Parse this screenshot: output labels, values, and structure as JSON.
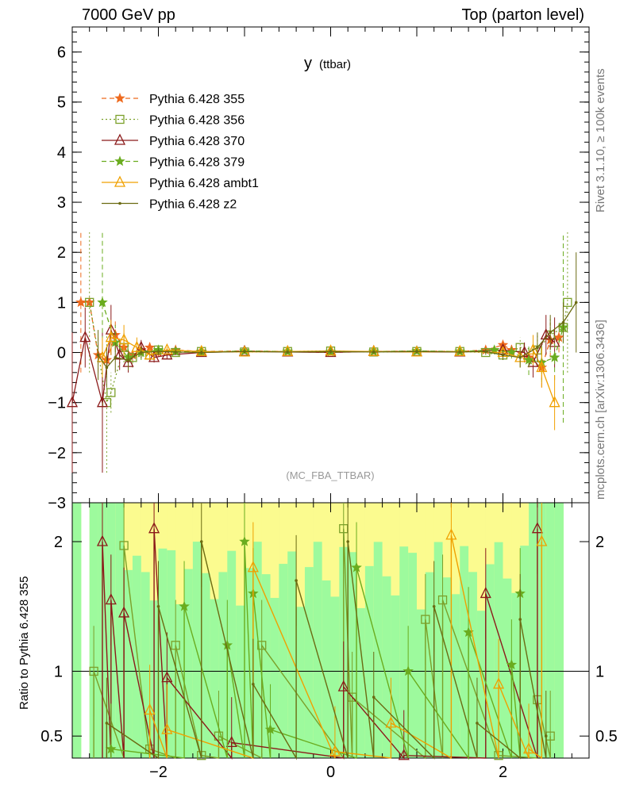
{
  "header": {
    "left_title": "7000 GeV pp",
    "right_title": "Top (parton level)"
  },
  "side_labels": {
    "rivet": "Rivet 3.1.10, ≥ 100k events",
    "source": "mcplots.cern.ch [arXiv:1306.3436]"
  },
  "ratio_ylabel": "Ratio to Pythia 6.428 355",
  "chart_data": [
    {
      "type": "line",
      "title": "y (ttbar)",
      "title_main": "y",
      "title_sub": "(ttbar)",
      "annotation": "(MC_FBA_TTBAR)",
      "xlabel": "",
      "ylabel": "",
      "xlim": [
        -3,
        3
      ],
      "ylim": [
        -3,
        6.5
      ],
      "yticks": [
        -3,
        -2,
        -1,
        0,
        1,
        2,
        3,
        4,
        5,
        6
      ],
      "ytick_labels": [
        "−3",
        "−2",
        "−1",
        "0",
        "1",
        "2",
        "3",
        "4",
        "5",
        "6"
      ],
      "xticks": [
        -2,
        0,
        2
      ],
      "xtick_labels": [
        "−2",
        "0",
        "2"
      ],
      "legend_position": "top-left",
      "series": [
        {
          "name": "Pythia 6.428 355",
          "color": "#ee6a1e",
          "marker": "star",
          "dash": "6,4",
          "points": [
            [
              -2.9,
              1.0
            ],
            [
              -2.8,
              1.0
            ],
            [
              -2.7,
              -0.05
            ],
            [
              -2.6,
              -0.15
            ],
            [
              -2.5,
              0.35
            ],
            [
              -2.4,
              0.1
            ],
            [
              -2.3,
              -0.05
            ],
            [
              -2.2,
              0.05
            ],
            [
              -2.1,
              0.1
            ],
            [
              -2.0,
              0.0
            ],
            [
              -1.8,
              0.05
            ],
            [
              -1.5,
              0.02
            ],
            [
              -1.0,
              0.03
            ],
            [
              -0.5,
              0.02
            ],
            [
              0.0,
              0.01
            ],
            [
              0.5,
              0.02
            ],
            [
              1.0,
              0.03
            ],
            [
              1.5,
              0.02
            ],
            [
              1.8,
              0.05
            ],
            [
              2.0,
              0.15
            ],
            [
              2.1,
              0.05
            ],
            [
              2.3,
              -0.1
            ],
            [
              2.45,
              -0.3
            ],
            [
              2.55,
              0.25
            ],
            [
              2.65,
              0.3
            ]
          ],
          "errors": [
            1.4,
            0,
            0.35,
            0.3,
            0.3,
            0.2,
            0.15,
            0.1,
            0.1,
            0.08,
            0.05,
            0.04,
            0.04,
            0.04,
            0.04,
            0.04,
            0.04,
            0.04,
            0.05,
            0.1,
            0.1,
            0.2,
            0.4,
            0.35,
            0.3
          ]
        },
        {
          "name": "Pythia 6.428 356",
          "color": "#7ba02a",
          "marker": "square",
          "dash": "2,3",
          "points": [
            [
              -2.8,
              1.0
            ],
            [
              -2.6,
              -1.0
            ],
            [
              -2.55,
              -0.8
            ],
            [
              -2.4,
              0.1
            ],
            [
              -2.3,
              -0.1
            ],
            [
              -2.1,
              -0.05
            ],
            [
              -2.0,
              0.05
            ],
            [
              -1.8,
              0.0
            ],
            [
              -1.5,
              0.02
            ],
            [
              -1.0,
              0.01
            ],
            [
              -0.5,
              0.02
            ],
            [
              0.0,
              0.03
            ],
            [
              0.5,
              0.01
            ],
            [
              1.0,
              0.02
            ],
            [
              1.5,
              0.02
            ],
            [
              1.8,
              0.0
            ],
            [
              2.0,
              -0.05
            ],
            [
              2.2,
              0.1
            ],
            [
              2.4,
              0.05
            ],
            [
              2.55,
              0.35
            ],
            [
              2.7,
              0.5
            ],
            [
              2.75,
              1.0
            ]
          ],
          "errors": [
            1.4,
            1.4,
            0.4,
            0.3,
            0.2,
            0.1,
            0.08,
            0.05,
            0.04,
            0.04,
            0.04,
            0.04,
            0.04,
            0.04,
            0.04,
            0.05,
            0.08,
            0.2,
            0.3,
            0.35,
            0.4,
            1.4
          ]
        },
        {
          "name": "Pythia 6.428 370",
          "color": "#8b1a1a",
          "marker": "triangle",
          "dash": "",
          "points": [
            [
              -3.0,
              -1.0
            ],
            [
              -2.85,
              0.3
            ],
            [
              -2.65,
              -1.0
            ],
            [
              -2.55,
              0.45
            ],
            [
              -2.45,
              -0.05
            ],
            [
              -2.35,
              -0.2
            ],
            [
              -2.2,
              0.1
            ],
            [
              -2.05,
              -0.1
            ],
            [
              -1.9,
              -0.05
            ],
            [
              -1.5,
              0.0
            ],
            [
              -1.0,
              0.02
            ],
            [
              -0.5,
              0.01
            ],
            [
              0.0,
              0.0
            ],
            [
              0.5,
              0.02
            ],
            [
              1.0,
              0.01
            ],
            [
              1.5,
              0.01
            ],
            [
              2.0,
              0.05
            ],
            [
              2.25,
              0.0
            ],
            [
              2.35,
              -0.2
            ],
            [
              2.5,
              0.35
            ],
            [
              2.6,
              0.2
            ]
          ],
          "errors": [
            1.4,
            0.6,
            1.4,
            0.5,
            0.3,
            0.2,
            0.15,
            0.1,
            0.08,
            0.05,
            0.04,
            0.04,
            0.04,
            0.04,
            0.04,
            0.04,
            0.08,
            0.2,
            0.3,
            0.4,
            0.5
          ]
        },
        {
          "name": "Pythia 6.428 379",
          "color": "#6aac1f",
          "marker": "star",
          "dash": "6,4",
          "points": [
            [
              -2.65,
              1.0
            ],
            [
              -2.5,
              0.2
            ],
            [
              -2.35,
              -0.1
            ],
            [
              -2.2,
              0.0
            ],
            [
              -2.0,
              0.05
            ],
            [
              -1.8,
              0.02
            ],
            [
              -1.5,
              0.01
            ],
            [
              -1.0,
              0.03
            ],
            [
              -0.5,
              0.02
            ],
            [
              0.0,
              0.01
            ],
            [
              0.5,
              0.02
            ],
            [
              1.0,
              0.03
            ],
            [
              1.5,
              0.02
            ],
            [
              1.9,
              0.05
            ],
            [
              2.1,
              0.0
            ],
            [
              2.3,
              -0.15
            ],
            [
              2.45,
              -0.2
            ],
            [
              2.6,
              -0.1
            ],
            [
              2.7,
              0.5
            ]
          ],
          "errors": [
            1.4,
            0.35,
            0.25,
            0.15,
            0.08,
            0.05,
            0.04,
            0.04,
            0.04,
            0.04,
            0.04,
            0.04,
            0.04,
            0.06,
            0.12,
            0.3,
            0.4,
            0.45,
            1.9
          ]
        },
        {
          "name": "Pythia 6.428 ambt1",
          "color": "#f0a000",
          "marker": "triangle",
          "dash": "",
          "points": [
            [
              -2.65,
              -0.1
            ],
            [
              -2.55,
              0.3
            ],
            [
              -2.4,
              0.25
            ],
            [
              -2.25,
              0.1
            ],
            [
              -2.1,
              -0.05
            ],
            [
              -1.9,
              0.05
            ],
            [
              -1.5,
              0.02
            ],
            [
              -1.0,
              0.01
            ],
            [
              -0.5,
              0.02
            ],
            [
              0.0,
              0.03
            ],
            [
              0.5,
              0.02
            ],
            [
              1.0,
              0.01
            ],
            [
              1.5,
              0.02
            ],
            [
              2.0,
              0.0
            ],
            [
              2.2,
              -0.1
            ],
            [
              2.35,
              0.05
            ],
            [
              2.45,
              -0.3
            ],
            [
              2.6,
              -1.0
            ]
          ],
          "errors": [
            0.4,
            0.35,
            0.3,
            0.2,
            0.1,
            0.06,
            0.04,
            0.04,
            0.04,
            0.04,
            0.04,
            0.04,
            0.04,
            0.08,
            0.2,
            0.3,
            0.4,
            0.55
          ]
        },
        {
          "name": "Pythia 6.428 z2",
          "color": "#6b6b12",
          "marker": "dot",
          "dash": "",
          "points": [
            [
              -2.7,
              -0.05
            ],
            [
              -2.6,
              -0.3
            ],
            [
              -2.5,
              -0.1
            ],
            [
              -2.35,
              -0.15
            ],
            [
              -2.2,
              0.0
            ],
            [
              -2.0,
              0.02
            ],
            [
              -1.8,
              0.01
            ],
            [
              -1.5,
              0.0
            ],
            [
              -1.0,
              0.02
            ],
            [
              -0.5,
              0.01
            ],
            [
              0.0,
              0.02
            ],
            [
              0.5,
              0.01
            ],
            [
              1.0,
              0.02
            ],
            [
              1.5,
              0.01
            ],
            [
              1.8,
              0.02
            ],
            [
              2.0,
              -0.05
            ],
            [
              2.2,
              -0.1
            ],
            [
              2.4,
              0.1
            ],
            [
              2.55,
              0.4
            ],
            [
              2.7,
              0.6
            ],
            [
              2.85,
              1.0
            ]
          ],
          "errors": [
            0.5,
            0.4,
            0.3,
            0.2,
            0.12,
            0.07,
            0.05,
            0.04,
            0.04,
            0.04,
            0.04,
            0.04,
            0.04,
            0.04,
            0.05,
            0.1,
            0.2,
            0.3,
            0.35,
            0.4,
            1.0
          ]
        }
      ]
    },
    {
      "type": "line",
      "title": "",
      "ylabel": "Ratio to Pythia 6.428 355",
      "xlim": [
        -3,
        3
      ],
      "ylim": [
        0.33,
        2.3
      ],
      "yscale": "linear",
      "yticks": [
        0.5,
        1,
        2
      ],
      "ytick_labels": [
        "0.5",
        "1",
        "2"
      ],
      "xticks": [
        -2,
        0,
        2
      ],
      "xtick_labels": [
        "−2",
        "0",
        "2"
      ],
      "reference_line": 1,
      "band_colors": {
        "inner": "#9dfa9d",
        "outer": "#fbfb8f"
      },
      "series": [
        {
          "name": "Pythia 6.428 356",
          "color": "#7ba02a",
          "marker": "square",
          "points": [
            [
              -2.75,
              1.0
            ],
            [
              -2.4,
              1.97
            ],
            [
              -2.1,
              0.4
            ],
            [
              -1.8,
              1.2
            ],
            [
              -1.5,
              0.35
            ],
            [
              -1.3,
              0.5
            ],
            [
              -0.8,
              1.2
            ],
            [
              0.15,
              2.1
            ],
            [
              0.25,
              0.8
            ],
            [
              1.1,
              1.4
            ],
            [
              1.3,
              1.55
            ],
            [
              1.95,
              0.35
            ],
            [
              2.4,
              0.78
            ],
            [
              2.55,
              0.5
            ]
          ]
        },
        {
          "name": "Pythia 6.428 370",
          "color": "#8b1a1a",
          "marker": "triangle",
          "points": [
            [
              -2.65,
              2.0
            ],
            [
              -2.55,
              1.55
            ],
            [
              -2.4,
              1.45
            ],
            [
              -2.05,
              2.1
            ],
            [
              -1.9,
              0.95
            ],
            [
              -1.15,
              0.45
            ],
            [
              0.15,
              0.88
            ],
            [
              0.85,
              0.35
            ],
            [
              1.8,
              1.6
            ],
            [
              2.4,
              2.1
            ]
          ]
        },
        {
          "name": "Pythia 6.428 379",
          "color": "#6aac1f",
          "marker": "star",
          "points": [
            [
              -2.55,
              0.4
            ],
            [
              -1.7,
              1.5
            ],
            [
              -1.2,
              1.2
            ],
            [
              -1.0,
              2.0
            ],
            [
              -0.9,
              1.6
            ],
            [
              -0.7,
              0.55
            ],
            [
              0.3,
              1.8
            ],
            [
              0.9,
              1.0
            ],
            [
              1.6,
              1.3
            ],
            [
              2.1,
              1.05
            ],
            [
              2.2,
              1.6
            ]
          ]
        },
        {
          "name": "Pythia 6.428 ambt1",
          "color": "#f0a000",
          "marker": "triangle",
          "points": [
            [
              -2.1,
              0.7
            ],
            [
              -1.9,
              0.55
            ],
            [
              -0.9,
              1.8
            ],
            [
              0.05,
              0.38
            ],
            [
              0.7,
              0.6
            ],
            [
              1.4,
              2.05
            ],
            [
              1.95,
              0.9
            ],
            [
              2.3,
              0.4
            ],
            [
              2.45,
              2.0
            ]
          ]
        },
        {
          "name": "Pythia 6.428 z2",
          "color": "#6b6b12",
          "marker": "dot",
          "points": [
            [
              -2.6,
              0.6
            ],
            [
              -2.0,
              1.5
            ],
            [
              -1.5,
              2.0
            ],
            [
              -0.9,
              0.9
            ],
            [
              -0.4,
              1.7
            ],
            [
              0.2,
              2.0
            ],
            [
              0.5,
              0.8
            ],
            [
              1.2,
              1.5
            ],
            [
              1.7,
              0.6
            ],
            [
              2.2,
              1.4
            ],
            [
              2.5,
              0.5
            ]
          ]
        }
      ]
    }
  ]
}
